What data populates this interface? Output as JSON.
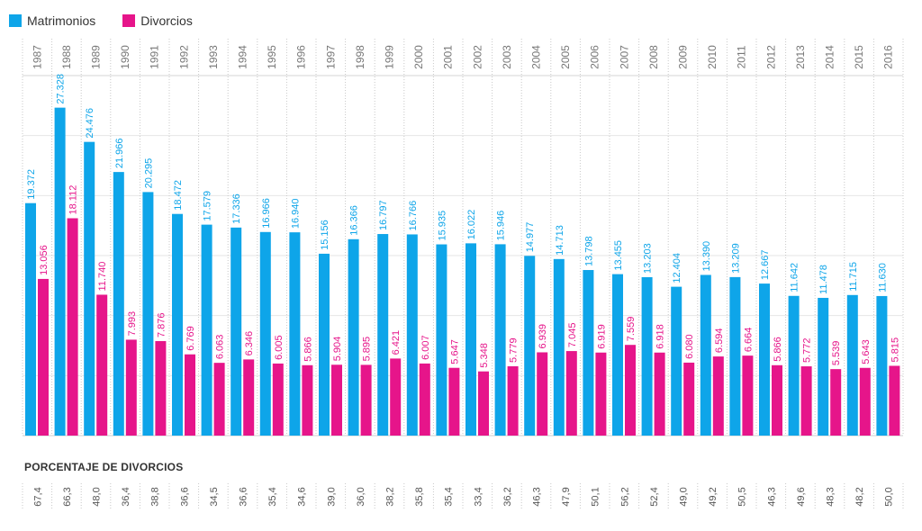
{
  "legend": {
    "items": [
      {
        "label": "Matrimonios",
        "color": "#0ea5e9"
      },
      {
        "label": "Divorcios",
        "color": "#e6158a"
      }
    ]
  },
  "percent_section": {
    "title": "PORCENTAJE DE DIVORCIOS",
    "values": [
      "67,4",
      "66,3",
      "48,0",
      "36,4",
      "38,8",
      "36,6",
      "34,5",
      "36,6",
      "35,4",
      "34,6",
      "39,0",
      "36,0",
      "38,2",
      "35,8",
      "35,4",
      "33,4",
      "36,2",
      "46,3",
      "47,9",
      "50,1",
      "56,2",
      "52,4",
      "49,0",
      "49,2",
      "50,5",
      "46,3",
      "49,6",
      "48,3",
      "48,2",
      "50,0"
    ]
  },
  "chart_data": {
    "type": "bar",
    "categories": [
      "1987",
      "1988",
      "1989",
      "1990",
      "1991",
      "1992",
      "1993",
      "1994",
      "1995",
      "1996",
      "1997",
      "1998",
      "1999",
      "2000",
      "2001",
      "2002",
      "2003",
      "2004",
      "2005",
      "2006",
      "2007",
      "2008",
      "2009",
      "2010",
      "2011",
      "2012",
      "2013",
      "2014",
      "2015",
      "2016"
    ],
    "series": [
      {
        "name": "Matrimonios",
        "color": "#0ea5e9",
        "values": [
          19372,
          27328,
          24476,
          21966,
          20295,
          18472,
          17579,
          17336,
          16966,
          16940,
          15156,
          16366,
          16797,
          16766,
          15935,
          16022,
          15946,
          14977,
          14713,
          13798,
          13455,
          13203,
          12404,
          13390,
          13209,
          12667,
          11642,
          11478,
          11715,
          11630
        ],
        "labels": [
          "19.372",
          "27.328",
          "24.476",
          "21.966",
          "20.295",
          "18.472",
          "17.579",
          "17.336",
          "16.966",
          "16.940",
          "15.156",
          "16.366",
          "16.797",
          "16.766",
          "15.935",
          "16.022",
          "15.946",
          "14.977",
          "14.713",
          "13.798",
          "13.455",
          "13.203",
          "12.404",
          "13.390",
          "13.209",
          "12.667",
          "11.642",
          "11.478",
          "11.715",
          "11.630"
        ]
      },
      {
        "name": "Divorcios",
        "color": "#e6158a",
        "values": [
          13056,
          18112,
          11740,
          7993,
          7876,
          6769,
          6063,
          6346,
          6005,
          5866,
          5904,
          5895,
          6421,
          6007,
          5647,
          5348,
          5779,
          6939,
          7045,
          6919,
          7559,
          6918,
          6080,
          6594,
          6664,
          5866,
          5772,
          5539,
          5643,
          5815
        ],
        "labels": [
          "13.056",
          "18.112",
          "11.740",
          "7.993",
          "7.876",
          "6.769",
          "6.063",
          "6.346",
          "6.005",
          "5.866",
          "5.904",
          "5.895",
          "6.421",
          "6.007",
          "5.647",
          "5.348",
          "5.779",
          "6.939",
          "7.045",
          "6.919",
          "7.559",
          "6.918",
          "6.080",
          "6.594",
          "6.664",
          "5.866",
          "5.772",
          "5.539",
          "5.643",
          "5.815"
        ]
      }
    ],
    "ylim": [
      0,
      30000
    ],
    "grid": true,
    "legend_position": "top-left"
  }
}
